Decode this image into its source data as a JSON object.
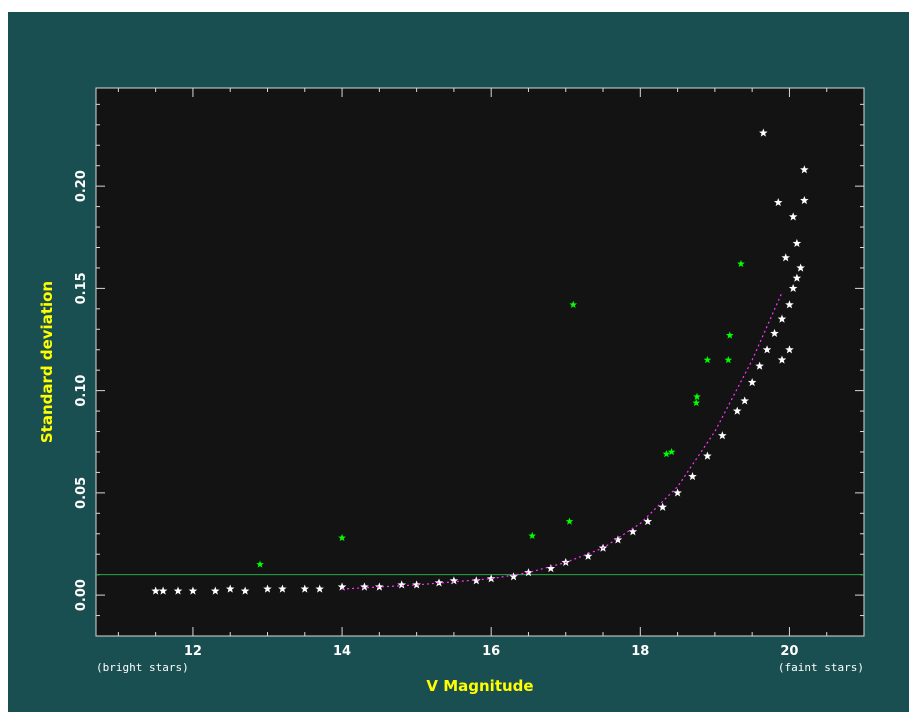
{
  "chart_data": {
    "type": "scatter",
    "title": "",
    "xlabel": "V Magnitude",
    "ylabel": "Standard deviation",
    "x_note_left": "(bright stars)",
    "x_note_right": "(faint stars)",
    "xlim": [
      10.7,
      21.0
    ],
    "ylim": [
      -0.02,
      0.248
    ],
    "x_ticks": [
      12,
      14,
      16,
      18,
      20
    ],
    "y_ticks": [
      0.0,
      0.05,
      0.1,
      0.15,
      0.2
    ],
    "y_tick_labels": [
      "0.00",
      "0.05",
      "0.10",
      "0.15",
      "0.20"
    ],
    "grid": false,
    "reference_line_y": 0.01,
    "trend_curve": {
      "x": [
        14.0,
        15.0,
        16.0,
        16.5,
        17.0,
        17.5,
        18.0,
        18.5,
        19.0,
        19.5,
        19.9
      ],
      "y": [
        0.003,
        0.005,
        0.008,
        0.011,
        0.016,
        0.023,
        0.035,
        0.053,
        0.08,
        0.115,
        0.148
      ]
    },
    "series": [
      {
        "name": "",
        "color": "#00ff00",
        "x": [
          12.9,
          14.0,
          16.55,
          17.05,
          17.1,
          18.35,
          18.42,
          18.75,
          18.76,
          18.9,
          19.18,
          19.2,
          19.35
        ],
        "y": [
          0.015,
          0.028,
          0.029,
          0.036,
          0.142,
          0.069,
          0.07,
          0.094,
          0.097,
          0.115,
          0.115,
          0.127,
          0.162
        ]
      },
      {
        "name": "",
        "color": "#ffffff",
        "x": [
          11.5,
          11.6,
          11.8,
          12.0,
          12.3,
          12.5,
          12.7,
          13.0,
          13.2,
          13.5,
          13.7,
          14.0,
          14.3,
          14.5,
          14.8,
          15.0,
          15.3,
          15.5,
          15.8,
          16.0,
          16.3,
          16.5,
          16.8,
          17.0,
          17.3,
          17.5,
          17.7,
          17.9,
          18.1,
          18.3,
          18.5,
          18.7,
          18.9,
          19.1,
          19.3,
          19.5,
          19.6,
          19.7,
          19.8,
          19.9,
          20.0,
          20.05,
          20.1,
          20.15,
          19.65,
          20.2,
          20.2,
          19.85,
          20.05,
          20.1,
          19.95,
          20.0,
          19.9,
          19.4
        ],
        "y": [
          0.002,
          0.002,
          0.002,
          0.002,
          0.002,
          0.003,
          0.002,
          0.003,
          0.003,
          0.003,
          0.003,
          0.004,
          0.004,
          0.004,
          0.005,
          0.005,
          0.006,
          0.007,
          0.007,
          0.008,
          0.009,
          0.011,
          0.013,
          0.016,
          0.019,
          0.023,
          0.027,
          0.031,
          0.036,
          0.043,
          0.05,
          0.058,
          0.068,
          0.078,
          0.09,
          0.104,
          0.112,
          0.12,
          0.128,
          0.135,
          0.142,
          0.15,
          0.155,
          0.16,
          0.226,
          0.208,
          0.193,
          0.192,
          0.185,
          0.172,
          0.165,
          0.12,
          0.115,
          0.095
        ]
      }
    ]
  }
}
